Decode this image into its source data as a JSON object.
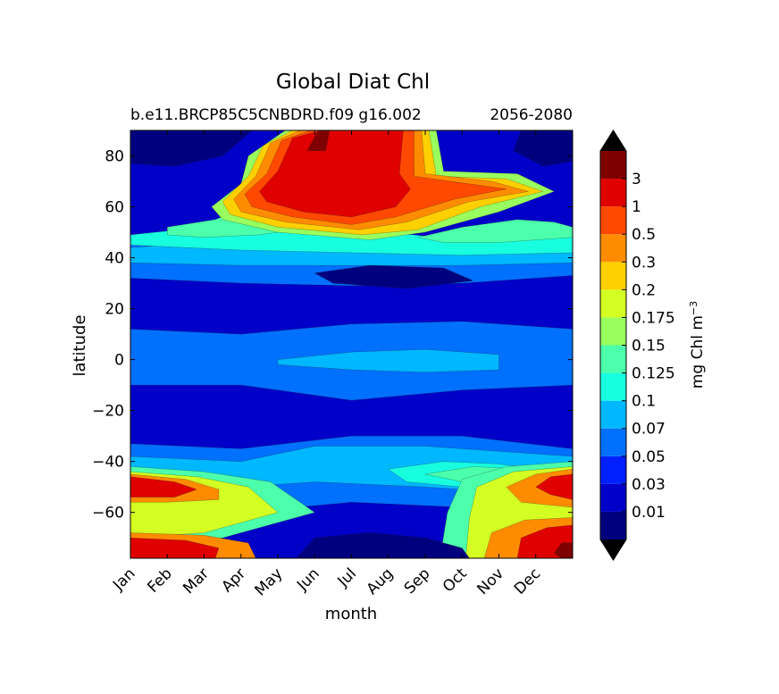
{
  "chart_data": {
    "type": "heatmap",
    "title": "Global Diat Chl",
    "subtitle_left": "b.e11.BRCP85C5CNBDRD.f09 g16.002",
    "subtitle_right": "2056-2080",
    "xlabel": "month",
    "ylabel": "latitude",
    "x_categories": [
      "Jan",
      "Feb",
      "Mar",
      "Apr",
      "May",
      "Jun",
      "Jul",
      "Aug",
      "Sep",
      "Oct",
      "Nov",
      "Dec"
    ],
    "y_ticks": [
      80,
      60,
      40,
      20,
      0,
      -20,
      -40,
      -60
    ],
    "y_ticks_text": [
      "80",
      "60",
      "40",
      "20",
      "0",
      "−20",
      "−40",
      "−60"
    ],
    "ylim": [
      -78,
      90
    ],
    "colorbar": {
      "label": "mg Chl m",
      "label_exponent": "−3",
      "levels": [
        0.005,
        0.01,
        0.03,
        0.05,
        0.07,
        0.1,
        0.125,
        0.15,
        0.175,
        0.2,
        0.3,
        0.5,
        1,
        3,
        5
      ],
      "tick_labels": [
        "0.01",
        "0.03",
        "0.05",
        "0.07",
        "0.1",
        "0.125",
        "0.15",
        "0.175",
        "0.2",
        "0.3",
        "0.5",
        "1",
        "3"
      ],
      "colors": [
        "#00007f",
        "#0000c8",
        "#0020ff",
        "#0070ff",
        "#00b8ff",
        "#18ffe0",
        "#4cffaa",
        "#98ff5e",
        "#d4ff22",
        "#ffd000",
        "#ff8c00",
        "#ff4800",
        "#e00000",
        "#7f0000"
      ],
      "under_color": "#000000",
      "over_color": "#000000"
    },
    "grid": false
  }
}
